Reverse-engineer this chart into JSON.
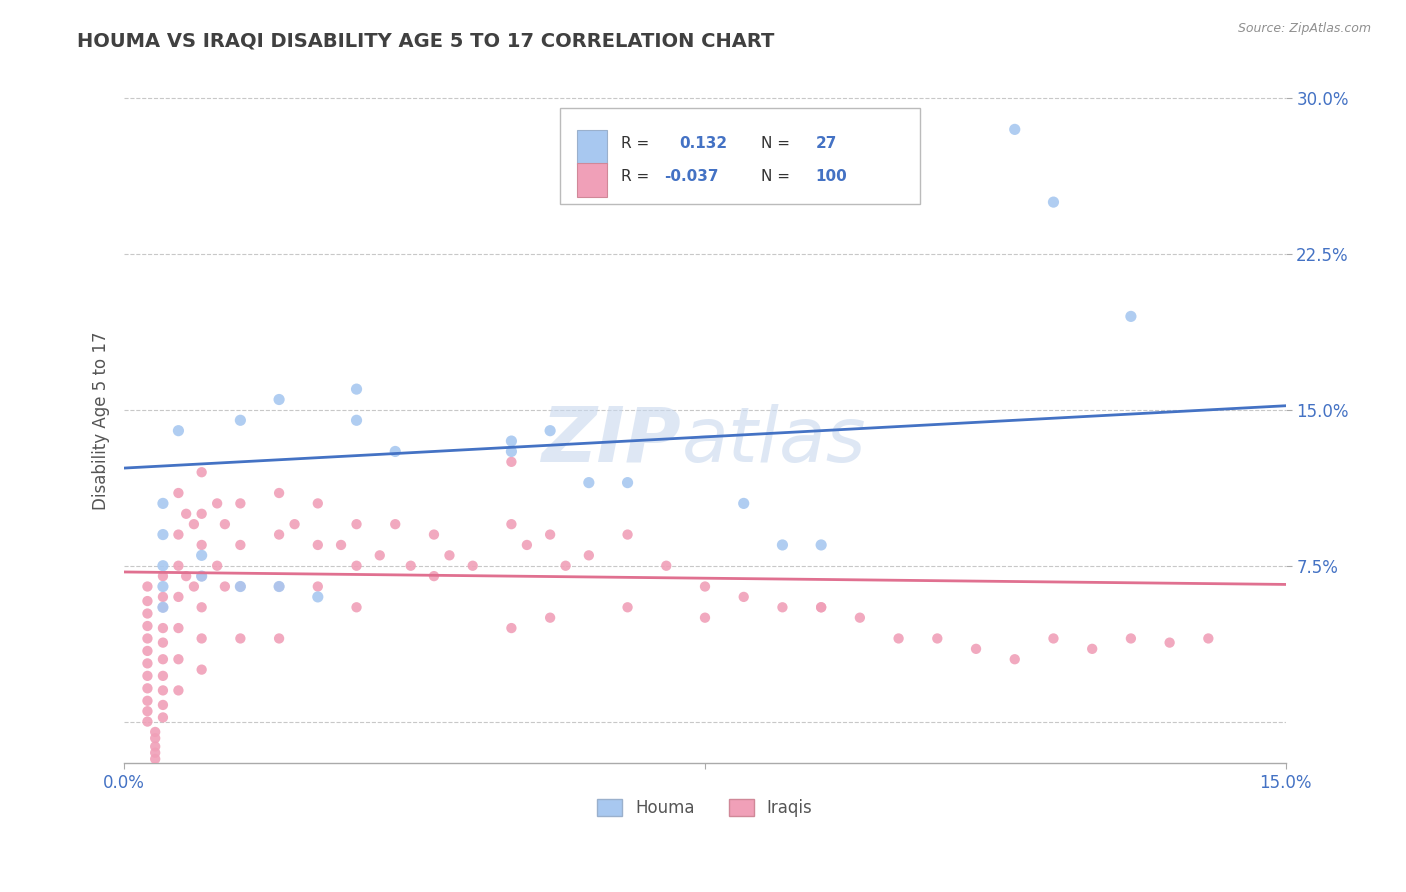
{
  "title": "HOUMA VS IRAQI DISABILITY AGE 5 TO 17 CORRELATION CHART",
  "source": "Source: ZipAtlas.com",
  "ylabel": "Disability Age 5 to 17",
  "watermark_zip": "ZIP",
  "watermark_atlas": "atlas",
  "xlim": [
    0.0,
    0.15
  ],
  "ylim": [
    -0.02,
    0.31
  ],
  "plot_ylim": [
    0.0,
    0.3
  ],
  "yticks": [
    0.075,
    0.15,
    0.225,
    0.3
  ],
  "ytick_labels": [
    "7.5%",
    "15.0%",
    "22.5%",
    "30.0%"
  ],
  "xticks": [
    0.0,
    0.075,
    0.15
  ],
  "xtick_labels": [
    "0.0%",
    "",
    "15.0%"
  ],
  "houma_R": 0.132,
  "houma_N": 27,
  "iraqi_R": -0.037,
  "iraqi_N": 100,
  "houma_color": "#a8c8f0",
  "houma_line_color": "#4472c4",
  "iraqi_color": "#f0a0b8",
  "iraqi_line_color": "#e07090",
  "background_color": "#ffffff",
  "grid_color": "#c8c8c8",
  "legend_text_color": "#4472c4",
  "title_color": "#404040",
  "source_color": "#909090",
  "houma_line_y0": 0.122,
  "houma_line_y1": 0.152,
  "iraqi_line_y0": 0.072,
  "iraqi_line_y1": 0.066,
  "houma_x": [
    0.005,
    0.005,
    0.005,
    0.005,
    0.005,
    0.007,
    0.01,
    0.01,
    0.015,
    0.015,
    0.02,
    0.02,
    0.025,
    0.03,
    0.03,
    0.035,
    0.05,
    0.05,
    0.055,
    0.06,
    0.065,
    0.08,
    0.085,
    0.09,
    0.115,
    0.12,
    0.13
  ],
  "houma_y": [
    0.105,
    0.09,
    0.075,
    0.065,
    0.055,
    0.14,
    0.08,
    0.07,
    0.145,
    0.065,
    0.155,
    0.065,
    0.06,
    0.16,
    0.145,
    0.13,
    0.135,
    0.13,
    0.14,
    0.115,
    0.115,
    0.105,
    0.085,
    0.085,
    0.285,
    0.25,
    0.195
  ],
  "iraqi_x": [
    0.003,
    0.003,
    0.003,
    0.003,
    0.003,
    0.003,
    0.003,
    0.003,
    0.003,
    0.003,
    0.003,
    0.003,
    0.004,
    0.004,
    0.004,
    0.004,
    0.004,
    0.004,
    0.005,
    0.005,
    0.005,
    0.005,
    0.005,
    0.005,
    0.005,
    0.005,
    0.005,
    0.005,
    0.007,
    0.007,
    0.007,
    0.007,
    0.007,
    0.007,
    0.007,
    0.008,
    0.008,
    0.009,
    0.009,
    0.01,
    0.01,
    0.01,
    0.01,
    0.01,
    0.01,
    0.01,
    0.012,
    0.012,
    0.013,
    0.013,
    0.015,
    0.015,
    0.015,
    0.015,
    0.02,
    0.02,
    0.02,
    0.02,
    0.022,
    0.025,
    0.025,
    0.025,
    0.028,
    0.03,
    0.03,
    0.03,
    0.033,
    0.035,
    0.037,
    0.04,
    0.04,
    0.042,
    0.045,
    0.05,
    0.05,
    0.052,
    0.055,
    0.057,
    0.06,
    0.065,
    0.07,
    0.075,
    0.08,
    0.085,
    0.09,
    0.095,
    0.1,
    0.105,
    0.11,
    0.115,
    0.12,
    0.125,
    0.13,
    0.135,
    0.14,
    0.09,
    0.075,
    0.065,
    0.055,
    0.05
  ],
  "iraqi_y": [
    0.065,
    0.058,
    0.052,
    0.046,
    0.04,
    0.034,
    0.028,
    0.022,
    0.016,
    0.01,
    0.005,
    0.0,
    -0.005,
    -0.008,
    -0.012,
    -0.015,
    -0.018,
    -0.022,
    0.07,
    0.06,
    0.055,
    0.045,
    0.038,
    0.03,
    0.022,
    0.015,
    0.008,
    0.002,
    0.11,
    0.09,
    0.075,
    0.06,
    0.045,
    0.03,
    0.015,
    0.1,
    0.07,
    0.095,
    0.065,
    0.12,
    0.1,
    0.085,
    0.07,
    0.055,
    0.04,
    0.025,
    0.105,
    0.075,
    0.095,
    0.065,
    0.105,
    0.085,
    0.065,
    0.04,
    0.11,
    0.09,
    0.065,
    0.04,
    0.095,
    0.105,
    0.085,
    0.065,
    0.085,
    0.095,
    0.075,
    0.055,
    0.08,
    0.095,
    0.075,
    0.09,
    0.07,
    0.08,
    0.075,
    0.125,
    0.095,
    0.085,
    0.09,
    0.075,
    0.08,
    0.09,
    0.075,
    0.065,
    0.06,
    0.055,
    0.055,
    0.05,
    0.04,
    0.04,
    0.035,
    0.03,
    0.04,
    0.035,
    0.04,
    0.038,
    0.04,
    0.055,
    0.05,
    0.055,
    0.05,
    0.045
  ]
}
